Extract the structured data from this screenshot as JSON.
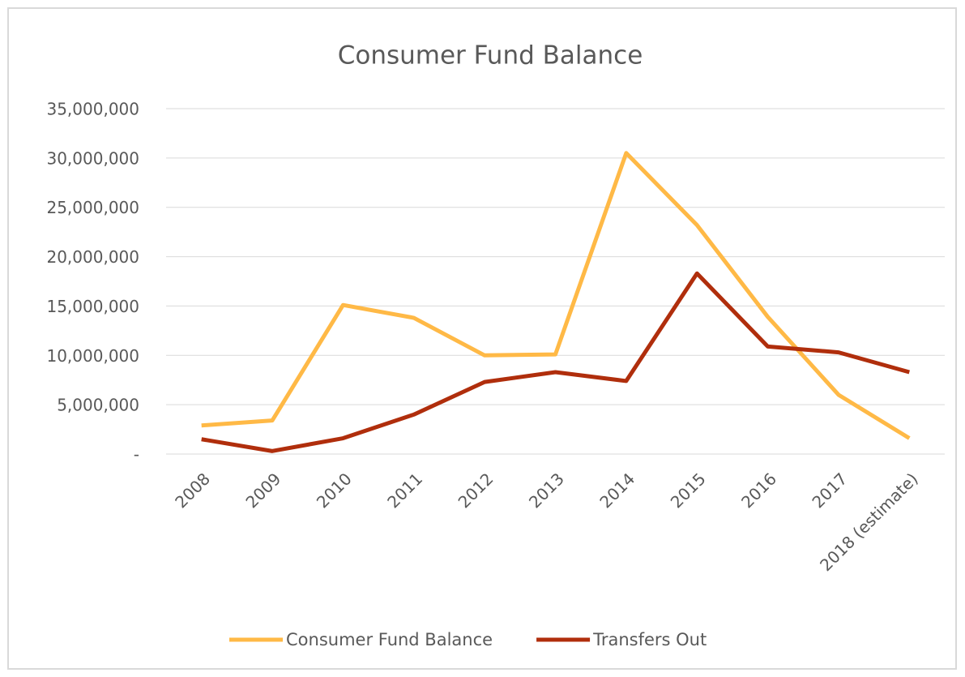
{
  "chart_data": {
    "type": "line",
    "title": "Consumer Fund Balance",
    "categories": [
      "2008",
      "2009",
      "2010",
      "2011",
      "2012",
      "2013",
      "2014",
      "2015",
      "2016",
      "2017",
      "2018 (estimate)"
    ],
    "series": [
      {
        "name": "Consumer Fund Balance",
        "color": "#ffb946",
        "values": [
          2900000,
          3400000,
          15100000,
          13800000,
          10000000,
          10100000,
          30500000,
          23200000,
          13900000,
          6000000,
          1600000
        ]
      },
      {
        "name": "Transfers Out",
        "color": "#b02e0c",
        "values": [
          1500000,
          300000,
          1600000,
          4000000,
          7300000,
          8300000,
          7400000,
          18300000,
          10900000,
          10300000,
          8300000
        ]
      }
    ],
    "ylim": [
      0,
      35000000
    ],
    "yticks": [
      {
        "value": 0,
        "label": "-"
      },
      {
        "value": 5000000,
        "label": "5,000,000"
      },
      {
        "value": 10000000,
        "label": "10,000,000"
      },
      {
        "value": 15000000,
        "label": "15,000,000"
      },
      {
        "value": 20000000,
        "label": "20,000,000"
      },
      {
        "value": 25000000,
        "label": "25,000,000"
      },
      {
        "value": 30000000,
        "label": "30,000,000"
      },
      {
        "value": 35000000,
        "label": "35,000,000"
      }
    ],
    "grid": true,
    "legend": "bottom"
  }
}
